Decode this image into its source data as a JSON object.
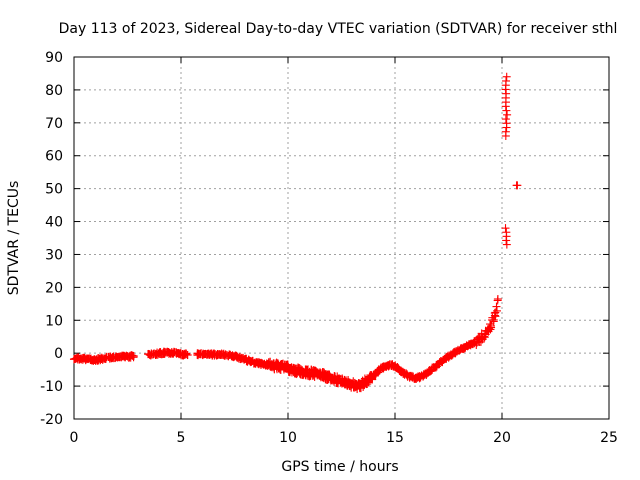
{
  "chart_data": {
    "type": "scatter",
    "title": "Day 113 of 2023, Sidereal Day-to-day VTEC variation (SDTVAR) for receiver sthl",
    "xlabel": "GPS time / hours",
    "ylabel": "SDTVAR / TECUs",
    "xlim": [
      0,
      25
    ],
    "ylim": [
      -20,
      90
    ],
    "xticks": [
      0,
      5,
      10,
      15,
      20,
      25
    ],
    "yticks": [
      -20,
      -10,
      0,
      10,
      20,
      30,
      40,
      50,
      60,
      70,
      80,
      90
    ],
    "grid": true,
    "marker": "plus",
    "series_color": "#ff0000",
    "trend": [
      [
        0.0,
        -1.5
      ],
      [
        0.5,
        -1.8
      ],
      [
        1.0,
        -2.0
      ],
      [
        1.5,
        -1.5
      ],
      [
        2.0,
        -1.2
      ],
      [
        2.7,
        -1.0
      ],
      [
        3.5,
        -0.5
      ],
      [
        4.0,
        0.0
      ],
      [
        4.5,
        0.2
      ],
      [
        5.0,
        -0.3
      ],
      [
        5.5,
        -0.5
      ],
      [
        6.0,
        -0.3
      ],
      [
        7.0,
        -0.5
      ],
      [
        7.5,
        -1.0
      ],
      [
        8.0,
        -2.0
      ],
      [
        8.5,
        -3.0
      ],
      [
        9.0,
        -3.5
      ],
      [
        9.5,
        -4.0
      ],
      [
        10.0,
        -4.5
      ],
      [
        10.5,
        -5.5
      ],
      [
        11.0,
        -6.0
      ],
      [
        11.5,
        -6.5
      ],
      [
        12.0,
        -7.5
      ],
      [
        12.5,
        -8.5
      ],
      [
        13.0,
        -9.5
      ],
      [
        13.3,
        -10.0
      ],
      [
        13.8,
        -8.0
      ],
      [
        14.2,
        -5.5
      ],
      [
        14.5,
        -4.0
      ],
      [
        14.8,
        -3.5
      ],
      [
        15.0,
        -4.0
      ],
      [
        15.3,
        -5.5
      ],
      [
        15.6,
        -7.0
      ],
      [
        16.0,
        -7.5
      ],
      [
        16.3,
        -7.0
      ],
      [
        16.6,
        -5.5
      ],
      [
        17.0,
        -3.5
      ],
      [
        17.5,
        -1.0
      ],
      [
        18.0,
        1.0
      ],
      [
        18.5,
        2.5
      ],
      [
        19.0,
        4.5
      ],
      [
        19.3,
        6.5
      ],
      [
        19.5,
        9.0
      ],
      [
        19.7,
        12.0
      ],
      [
        19.85,
        17.0
      ]
    ],
    "spikes": [
      {
        "x": 20.2,
        "y_from": 66,
        "y_to": 84
      },
      {
        "x": 20.2,
        "y_from": 33,
        "y_to": 38
      },
      {
        "x": 20.7,
        "y_from": 51,
        "y_to": 51
      }
    ]
  }
}
